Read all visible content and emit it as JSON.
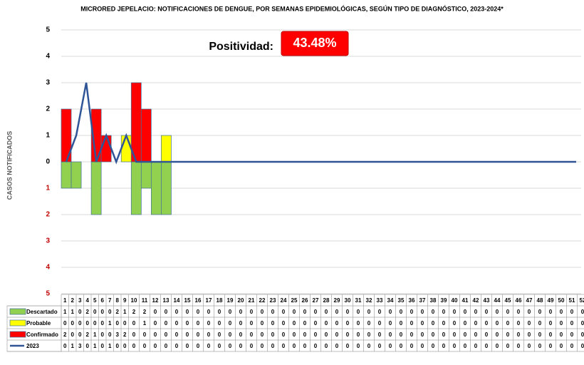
{
  "chart_data": {
    "type": "bar",
    "title": "MICRORED JEPELACIO: NOTIFICACIONES DE DENGUE, POR SEMANAS EPIDEMIOLÓGICAS, SEGÚN TIPO DE DIAGNÓSTICO, 2023-2024*",
    "y_label": "CASOS NOTIFICADOS",
    "positivity_label": "Positividad:",
    "positivity": "43.48%",
    "categories": [
      "1",
      "2",
      "3",
      "4",
      "5",
      "6",
      "7",
      "8",
      "9",
      "10",
      "11",
      "12",
      "13",
      "14",
      "15",
      "16",
      "17",
      "18",
      "19",
      "20",
      "21",
      "22",
      "23",
      "24",
      "25",
      "26",
      "27",
      "28",
      "29",
      "30",
      "31",
      "32",
      "33",
      "34",
      "35",
      "36",
      "37",
      "38",
      "39",
      "40",
      "41",
      "42",
      "43",
      "44",
      "45",
      "46",
      "47",
      "48",
      "49",
      "50",
      "51",
      "52"
    ],
    "series": [
      {
        "name": "Descartado",
        "color": "#92d050",
        "side": "below",
        "values": [
          1,
          1,
          0,
          2,
          0,
          0,
          0,
          2,
          1,
          2,
          2,
          0,
          0,
          0,
          0,
          0,
          0,
          0,
          0,
          0,
          0,
          0,
          0,
          0,
          0,
          0,
          0,
          0,
          0,
          0,
          0,
          0,
          0,
          0,
          0,
          0,
          0,
          0,
          0,
          0,
          0,
          0,
          0,
          0,
          0,
          0,
          0,
          0,
          0,
          0,
          0,
          0
        ]
      },
      {
        "name": "Probable",
        "color": "#ffff00",
        "side": "above",
        "values": [
          0,
          0,
          0,
          0,
          0,
          0,
          1,
          0,
          0,
          0,
          1,
          0,
          0,
          0,
          0,
          0,
          0,
          0,
          0,
          0,
          0,
          0,
          0,
          0,
          0,
          0,
          0,
          0,
          0,
          0,
          0,
          0,
          0,
          0,
          0,
          0,
          0,
          0,
          0,
          0,
          0,
          0,
          0,
          0,
          0,
          0,
          0,
          0,
          0,
          0,
          0,
          0
        ]
      },
      {
        "name": "Confirmado",
        "color": "#ff0000",
        "side": "above",
        "values": [
          2,
          0,
          0,
          2,
          1,
          0,
          0,
          3,
          2,
          0,
          0,
          0,
          0,
          0,
          0,
          0,
          0,
          0,
          0,
          0,
          0,
          0,
          0,
          0,
          0,
          0,
          0,
          0,
          0,
          0,
          0,
          0,
          0,
          0,
          0,
          0,
          0,
          0,
          0,
          0,
          0,
          0,
          0,
          0,
          0,
          0,
          0,
          0,
          0,
          0,
          0,
          0
        ]
      },
      {
        "name": "2023",
        "color": "#2f5597",
        "type": "line",
        "values": [
          0,
          1,
          3,
          0,
          1,
          0,
          1,
          0,
          0,
          0,
          0,
          0,
          0,
          0,
          0,
          0,
          0,
          0,
          0,
          0,
          0,
          0,
          0,
          0,
          0,
          0,
          0,
          0,
          0,
          0,
          0,
          0,
          0,
          0,
          0,
          0,
          0,
          0,
          0,
          0,
          0,
          0,
          0,
          0,
          0,
          0,
          0,
          0,
          0,
          0,
          0,
          0
        ]
      }
    ],
    "ylim": [
      -5,
      5
    ],
    "yticks": [
      5,
      4,
      3,
      2,
      1,
      0,
      {
        "value": -1,
        "label": "1"
      },
      {
        "value": -2,
        "label": "2"
      },
      {
        "value": -3,
        "label": "3"
      },
      {
        "value": -4,
        "label": "4"
      },
      {
        "value": -5,
        "label": "5"
      }
    ],
    "grid": true
  }
}
